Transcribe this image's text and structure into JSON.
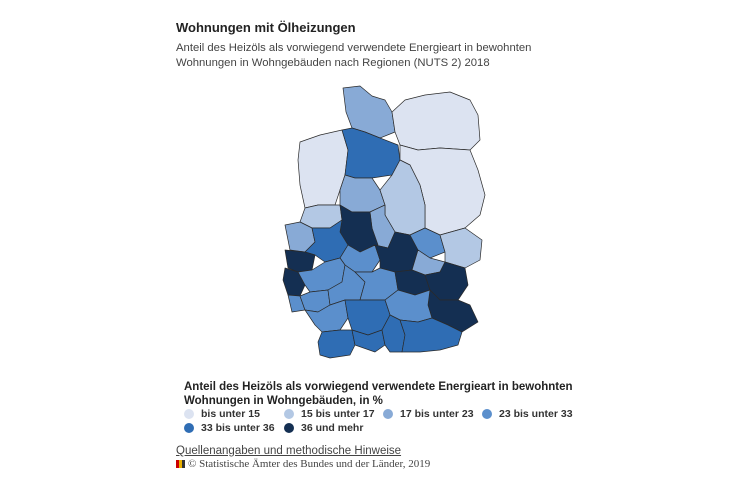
{
  "title": "Wohnungen mit Ölheizungen",
  "subtitle": "Anteil des Heizöls als vorwiegend verwendete Energieart in bewohnten Wohnungen in Wohngebäuden nach Regionen (NUTS 2) 2018",
  "legend": {
    "title": "Anteil des Heizöls als vorwiegend verwendete Energieart in bewohnten Wohnungen in Wohngebäuden, in %",
    "items": [
      {
        "label": "bis unter 15",
        "color": "#dce3f1"
      },
      {
        "label": "15 bis unter 17",
        "color": "#b3c8e4"
      },
      {
        "label": "17 bis unter 23",
        "color": "#88aad6"
      },
      {
        "label": "23 bis unter 33",
        "color": "#5b8fcc"
      },
      {
        "label": "33 bis unter 36",
        "color": "#2f6db4"
      },
      {
        "label": "36 und mehr",
        "color": "#142f52"
      }
    ]
  },
  "footer": {
    "sources_link": "Quellenangaben und methodische Hinweise",
    "copyright": "© Statistische Ämter des Bundes und der Länder, 2019"
  }
}
